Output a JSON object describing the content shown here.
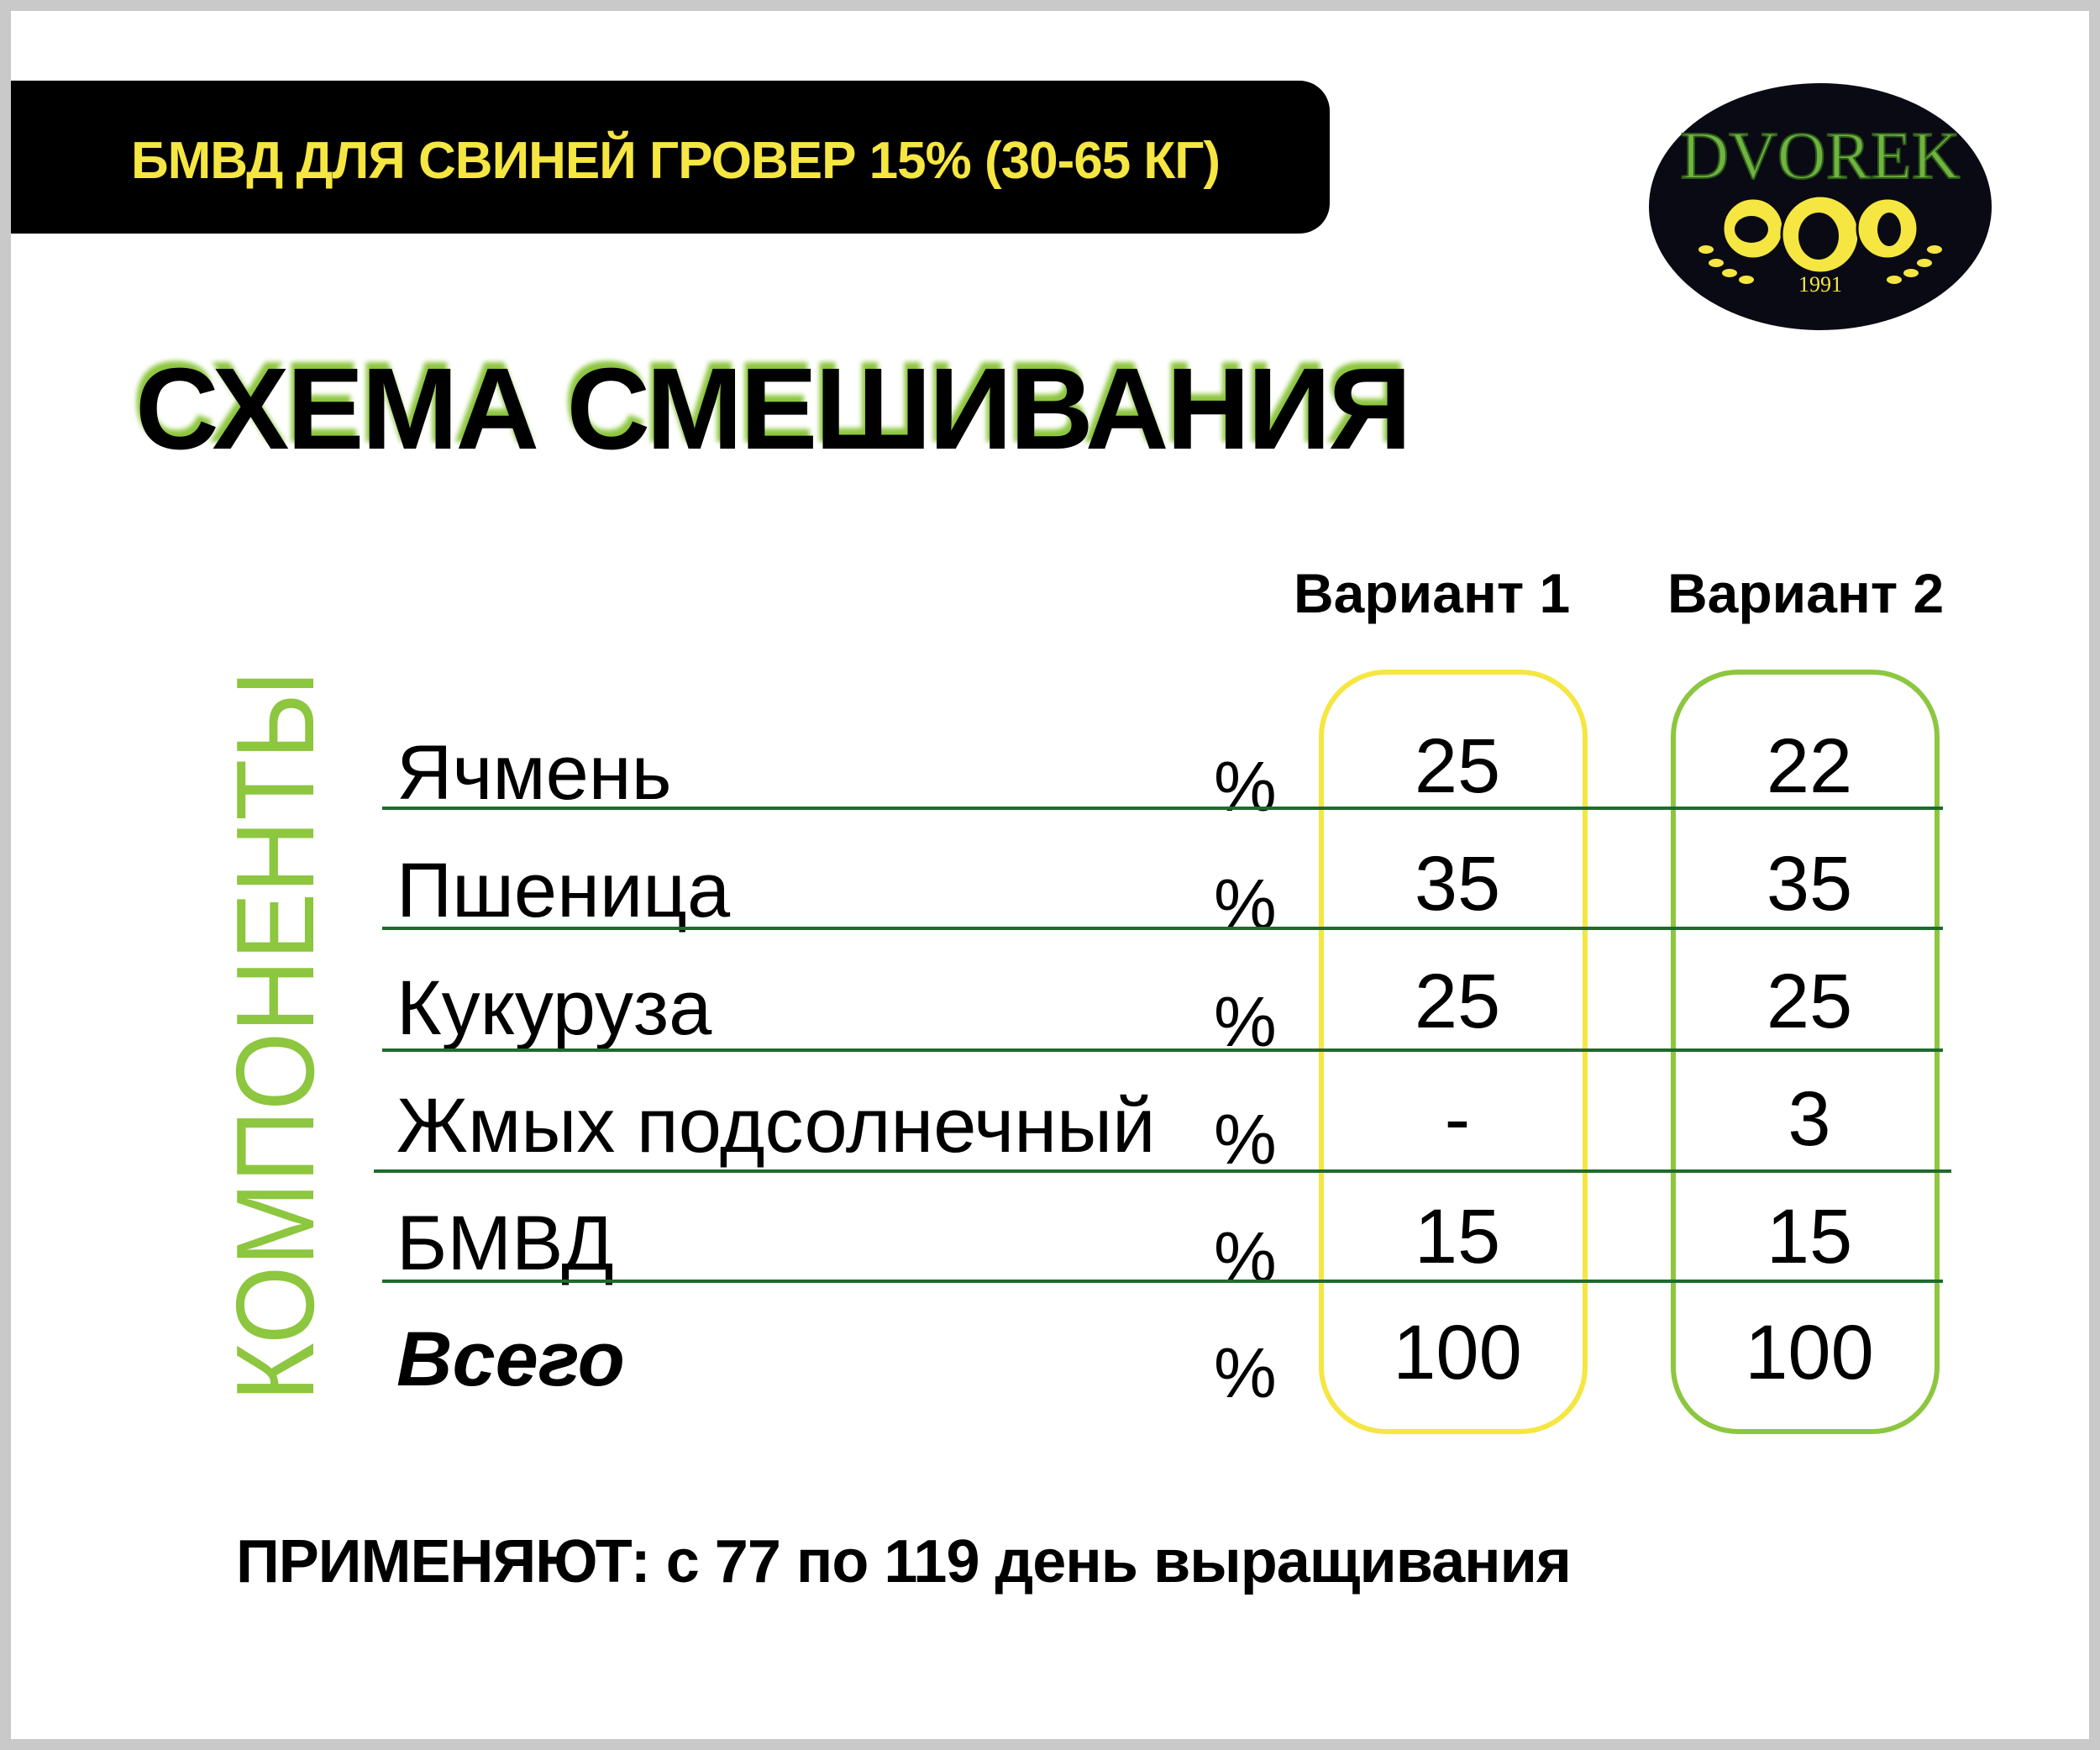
{
  "header": {
    "title": "БМВД ДЛЯ СВИНЕЙ ГРОВЕР 15% (30-65 КГ)"
  },
  "logo": {
    "brand": "DVOREK",
    "year": "1991"
  },
  "page_title": "СХЕМА СМЕШИВАНИЯ",
  "side_label": "КОМПОНЕНТЫ",
  "columns": [
    "Вариант 1",
    "Вариант 2"
  ],
  "unit": "%",
  "rows": [
    {
      "name": "Ячмень",
      "v1": "25",
      "v2": "22"
    },
    {
      "name": "Пшеница",
      "v1": "35",
      "v2": "35"
    },
    {
      "name": "Кукуруза",
      "v1": "25",
      "v2": "25"
    },
    {
      "name": "Жмых подсолнечный",
      "v1": "-",
      "v2": "3"
    },
    {
      "name": "БМВД",
      "v1": "15",
      "v2": "15"
    },
    {
      "name": "Всего",
      "v1": "100",
      "v2": "100"
    }
  ],
  "footer": "ПРИМЕНЯЮТ: с 77 по 119 день выращивания",
  "colors": {
    "accent_yellow": "#f5e642",
    "accent_green": "#8dc63f",
    "line_green": "#1e6b2e",
    "header_bg": "#000000"
  }
}
